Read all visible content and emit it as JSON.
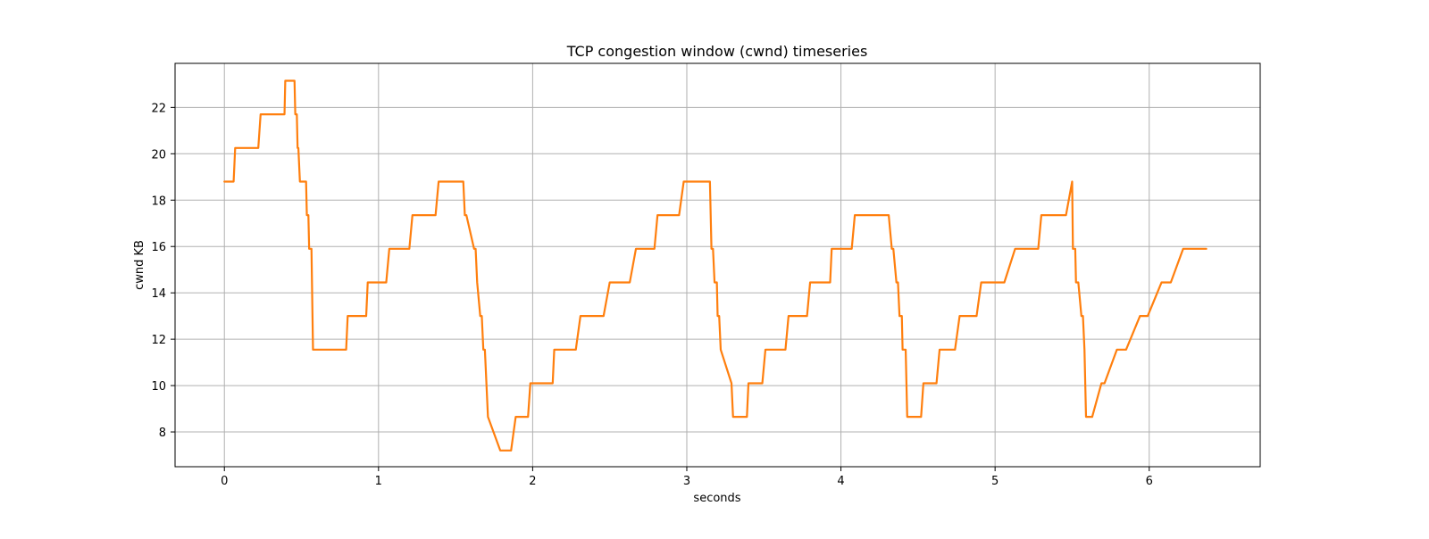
{
  "chart_data": {
    "type": "line",
    "title": "TCP congestion window (cwnd) timeseries",
    "xlabel": "seconds",
    "ylabel": "cwnd KB",
    "xlim": [
      -0.32,
      6.72
    ],
    "ylim": [
      6.5,
      23.9
    ],
    "xticks": [
      0,
      1,
      2,
      3,
      4,
      5,
      6
    ],
    "yticks": [
      8,
      10,
      12,
      14,
      16,
      18,
      20,
      22
    ],
    "grid": true,
    "legend": "none",
    "series": [
      {
        "color": "#ff7f0e",
        "x": [
          0.0,
          0.06,
          0.07,
          0.22,
          0.235,
          0.39,
          0.395,
          0.4,
          0.455,
          0.46,
          0.47,
          0.475,
          0.48,
          0.49,
          0.5,
          0.53,
          0.535,
          0.545,
          0.55,
          0.565,
          0.575,
          0.58,
          0.79,
          0.8,
          0.92,
          0.93,
          1.05,
          1.07,
          1.2,
          1.22,
          1.37,
          1.39,
          1.55,
          1.56,
          1.57,
          1.62,
          1.63,
          1.64,
          1.66,
          1.67,
          1.68,
          1.69,
          1.71,
          1.79,
          1.86,
          1.89,
          1.97,
          1.985,
          2.13,
          2.14,
          2.28,
          2.31,
          2.46,
          2.5,
          2.63,
          2.67,
          2.79,
          2.81,
          2.95,
          2.98,
          3.15,
          3.16,
          3.17,
          3.18,
          3.195,
          3.2,
          3.21,
          3.22,
          3.29,
          3.3,
          3.39,
          3.4,
          3.49,
          3.51,
          3.64,
          3.66,
          3.78,
          3.8,
          3.93,
          3.94,
          4.07,
          4.09,
          4.31,
          4.33,
          4.34,
          4.36,
          4.37,
          4.38,
          4.395,
          4.4,
          4.42,
          4.43,
          4.52,
          4.535,
          4.62,
          4.64,
          4.74,
          4.77,
          4.88,
          4.91,
          5.06,
          5.13,
          5.28,
          5.3,
          5.46,
          5.5,
          5.505,
          5.52,
          5.525,
          5.54,
          5.56,
          5.57,
          5.58,
          5.59,
          5.63,
          5.69,
          5.71,
          5.79,
          5.85,
          5.94,
          5.99,
          6.08,
          6.14,
          6.22,
          6.28,
          6.37
        ],
        "values": [
          18.8,
          18.8,
          20.25,
          20.25,
          21.7,
          21.7,
          23.15,
          23.15,
          23.15,
          21.7,
          21.7,
          20.25,
          20.25,
          18.8,
          18.8,
          18.8,
          17.35,
          17.35,
          15.9,
          15.9,
          11.55,
          11.55,
          11.55,
          13.0,
          13.0,
          14.45,
          14.45,
          15.9,
          15.9,
          17.35,
          17.35,
          18.8,
          18.8,
          17.35,
          17.35,
          15.9,
          15.9,
          14.45,
          13.0,
          13.0,
          11.55,
          11.55,
          8.65,
          7.2,
          7.2,
          8.65,
          8.65,
          10.1,
          10.1,
          11.55,
          11.55,
          13.0,
          13.0,
          14.45,
          14.45,
          15.9,
          15.9,
          17.35,
          17.35,
          18.8,
          18.8,
          15.9,
          15.9,
          14.45,
          14.45,
          13.0,
          13.0,
          11.55,
          10.1,
          8.65,
          8.65,
          10.1,
          10.1,
          11.55,
          11.55,
          13.0,
          13.0,
          14.45,
          14.45,
          15.9,
          15.9,
          17.35,
          17.35,
          15.9,
          15.9,
          14.45,
          14.45,
          13.0,
          13.0,
          11.55,
          11.55,
          8.65,
          8.65,
          10.1,
          10.1,
          11.55,
          11.55,
          13.0,
          13.0,
          14.45,
          14.45,
          15.9,
          15.9,
          17.35,
          17.35,
          18.8,
          15.9,
          15.9,
          14.45,
          14.45,
          13.0,
          13.0,
          11.55,
          8.65,
          8.65,
          10.1,
          10.1,
          11.55,
          11.55,
          13.0,
          13.0,
          14.45,
          14.45,
          15.9,
          15.9,
          15.9
        ]
      }
    ]
  }
}
